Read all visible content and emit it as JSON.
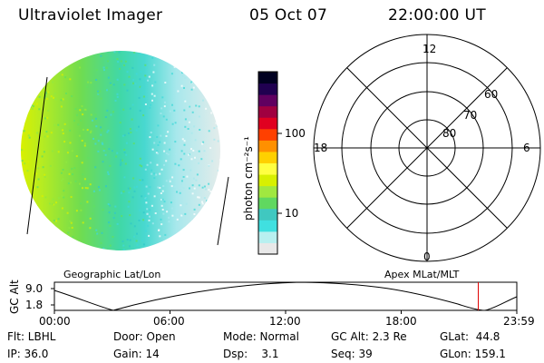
{
  "header": {
    "instrument": "Ultraviolet Imager",
    "date": "05 Oct 07",
    "time": "22:00:00 UT"
  },
  "colorbar": {
    "label": "photon cm⁻²s⁻¹",
    "ticks": [
      "100",
      "10"
    ],
    "scale": "log",
    "colors": [
      "#e8e8e8",
      "#b8f0f0",
      "#40e0e0",
      "#40c8c0",
      "#60d860",
      "#a0e840",
      "#d8f000",
      "#ffff40",
      "#ffd000",
      "#ff9000",
      "#ff4000",
      "#e00020",
      "#a00040",
      "#600060",
      "#200050",
      "#000020"
    ]
  },
  "polar_plot": {
    "mlt_labels": [
      "12",
      "18",
      "6",
      "0"
    ],
    "mlat_labels": [
      "60",
      "70",
      "80"
    ]
  },
  "timeline": {
    "axis_label": "GC Alt",
    "y_ticks": [
      "9.0",
      "1.8"
    ],
    "left_caption": "Geographic Lat/Lon",
    "right_caption": "Apex MLat/MLT",
    "x_ticks": [
      "00:00",
      "06:00",
      "12:00",
      "18:00",
      "23:59"
    ],
    "marker_time_fraction": 0.9167
  },
  "status": {
    "flt": "Flt: LBHL",
    "ip": "IP: 36.0",
    "door": "Door: Open",
    "gain": "Gain: 14",
    "mode": "Mode: Normal",
    "dsp": "Dsp:    3.1",
    "gc_alt": "GC Alt: 2.3 Re",
    "seq": "Seq: 39",
    "glat": "GLat:  44.8",
    "glon": "GLon: 159.1"
  }
}
